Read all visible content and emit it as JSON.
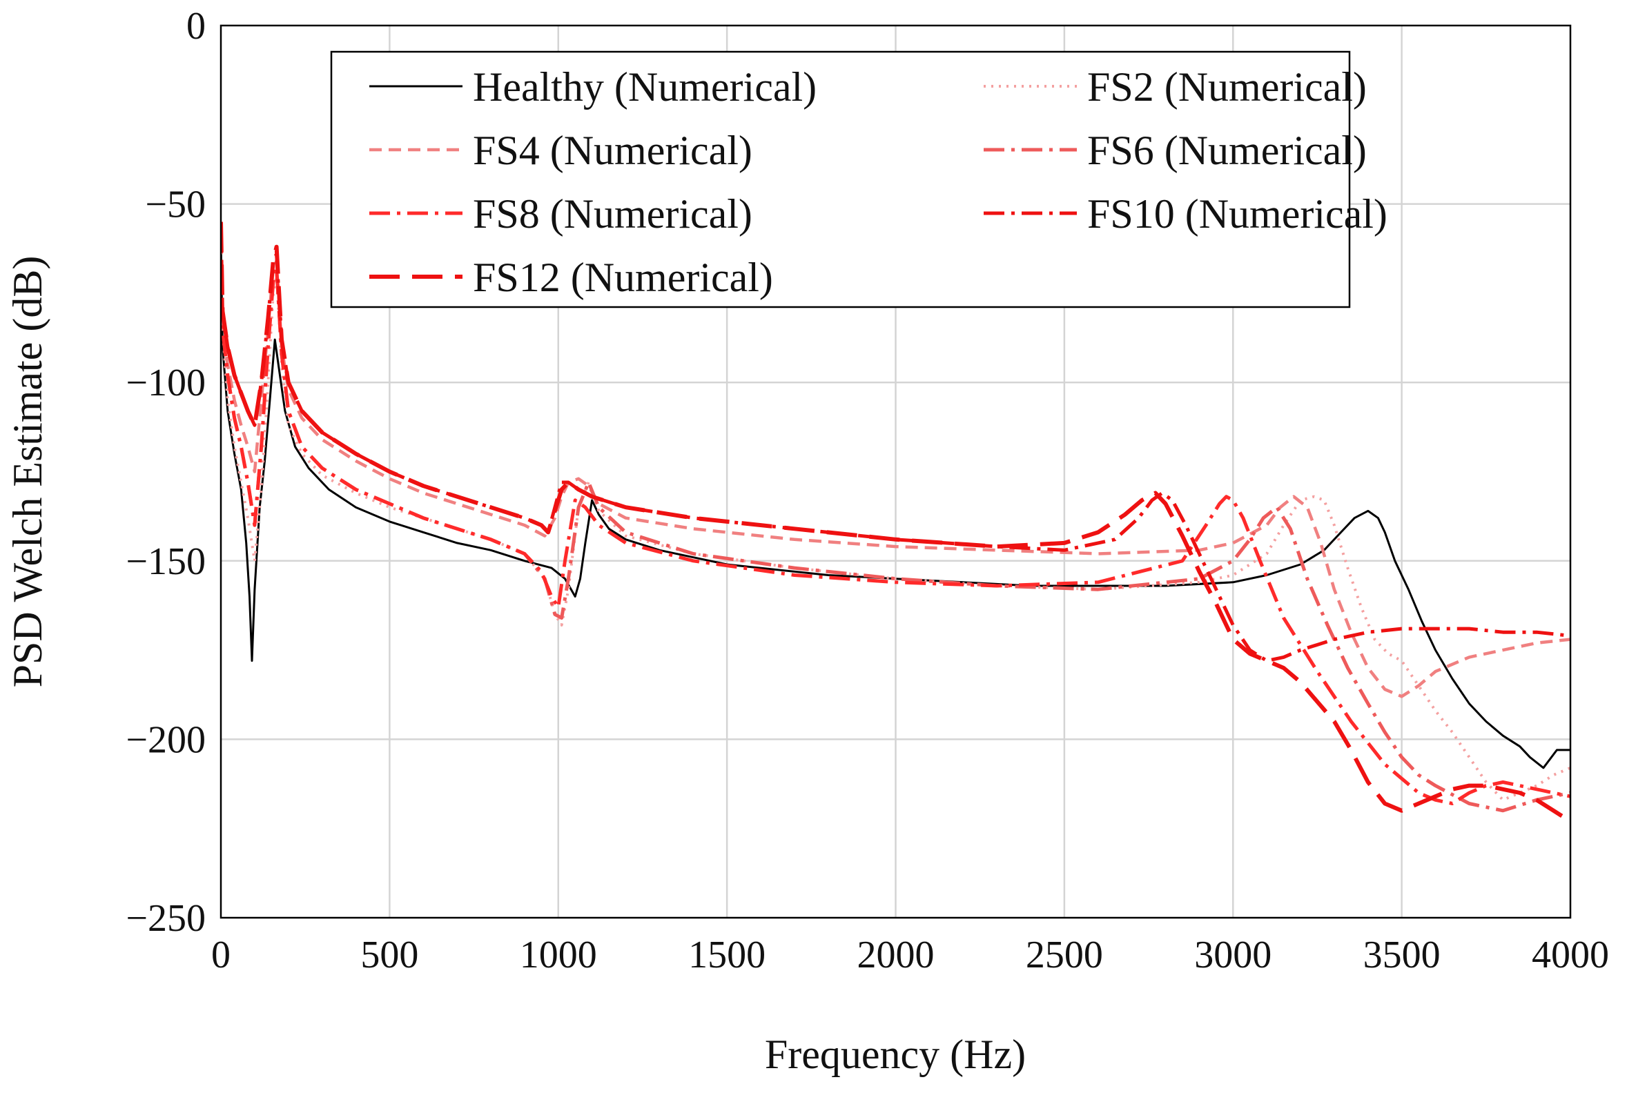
{
  "chart_data": {
    "type": "line",
    "title": "",
    "xlabel": "Frequency  (Hz)",
    "ylabel": "PSD Welch Estimate (dB)",
    "xlim": [
      0,
      4000
    ],
    "ylim": [
      -250,
      0
    ],
    "xticks": [
      0,
      500,
      1000,
      1500,
      2000,
      2500,
      3000,
      3500,
      4000
    ],
    "yticks": [
      0,
      -50,
      -100,
      -150,
      -200,
      -250
    ],
    "xtick_labels": [
      "0",
      "500",
      "1000",
      "1500",
      "2000",
      "2500",
      "3000",
      "3500",
      "4000"
    ],
    "ytick_labels": [
      "0",
      "−50",
      "−100",
      "−150",
      "−200",
      "−250"
    ],
    "grid": true,
    "legend_position": "top-right",
    "series": [
      {
        "name": "Healthy (Numerical)",
        "color": "#000000",
        "dash": "solid",
        "x": [
          0,
          5,
          20,
          40,
          60,
          75,
          85,
          92,
          100,
          115,
          130,
          145,
          160,
          175,
          190,
          220,
          260,
          320,
          400,
          500,
          600,
          700,
          800,
          900,
          980,
          1020,
          1050,
          1065,
          1080,
          1100,
          1120,
          1150,
          1200,
          1300,
          1500,
          1800,
          2000,
          2200,
          2400,
          2600,
          2800,
          3000,
          3100,
          3200,
          3270,
          3320,
          3360,
          3400,
          3430,
          3450,
          3480,
          3520,
          3560,
          3600,
          3650,
          3700,
          3750,
          3800,
          3850,
          3880,
          3920,
          3960,
          4000
        ],
        "y": [
          -60,
          -90,
          -108,
          -120,
          -130,
          -145,
          -160,
          -178,
          -158,
          -135,
          -122,
          -105,
          -88,
          -98,
          -108,
          -118,
          -124,
          -130,
          -135,
          -139,
          -142,
          -145,
          -147,
          -150,
          -152,
          -155,
          -160,
          -155,
          -145,
          -133,
          -137,
          -141,
          -144,
          -147,
          -151,
          -154,
          -155,
          -156,
          -157,
          -157,
          -157,
          -156,
          -154,
          -151,
          -147,
          -142,
          -138,
          -136,
          -138,
          -142,
          -150,
          -158,
          -167,
          -175,
          -183,
          -190,
          -195,
          -199,
          -202,
          -205,
          -208,
          -203,
          -203
        ]
      },
      {
        "name": "FS2 (Numerical)",
        "color": "#f4a0a0",
        "dash": "dot",
        "x": [
          0,
          5,
          20,
          40,
          60,
          80,
          100,
          120,
          140,
          155,
          165,
          180,
          200,
          240,
          300,
          400,
          500,
          600,
          700,
          800,
          900,
          960,
          990,
          1010,
          1030,
          1060,
          1090,
          1120,
          1200,
          1400,
          1700,
          2000,
          2300,
          2600,
          2900,
          3000,
          3100,
          3150,
          3200,
          3240,
          3270,
          3300,
          3340,
          3380,
          3420,
          3460,
          3500,
          3550,
          3600,
          3650,
          3700,
          3750,
          3800,
          3850,
          3900,
          3950,
          4000
        ],
        "y": [
          -55,
          -85,
          -105,
          -118,
          -128,
          -138,
          -150,
          -130,
          -100,
          -75,
          -70,
          -95,
          -112,
          -120,
          -126,
          -131,
          -135,
          -138,
          -141,
          -144,
          -148,
          -155,
          -165,
          -168,
          -158,
          -135,
          -128,
          -136,
          -143,
          -148,
          -152,
          -155,
          -157,
          -158,
          -156,
          -154,
          -148,
          -140,
          -133,
          -132,
          -133,
          -140,
          -152,
          -163,
          -172,
          -176,
          -178,
          -185,
          -192,
          -198,
          -205,
          -212,
          -217,
          -215,
          -213,
          -210,
          -208
        ]
      },
      {
        "name": "FS4 (Numerical)",
        "color": "#f08080",
        "dash": "dash",
        "x": [
          0,
          5,
          20,
          40,
          60,
          80,
          100,
          120,
          140,
          155,
          165,
          180,
          200,
          240,
          300,
          400,
          500,
          600,
          700,
          800,
          900,
          960,
          990,
          1010,
          1030,
          1060,
          1090,
          1120,
          1200,
          1400,
          1700,
          2000,
          2300,
          2600,
          2900,
          3000,
          3100,
          3140,
          3180,
          3220,
          3260,
          3300,
          3350,
          3400,
          3450,
          3500,
          3550,
          3600,
          3700,
          3800,
          3900,
          4000
        ],
        "y": [
          -55,
          -85,
          -95,
          -105,
          -112,
          -118,
          -125,
          -105,
          -85,
          -68,
          -66,
          -90,
          -102,
          -110,
          -116,
          -122,
          -127,
          -131,
          -134,
          -137,
          -140,
          -143,
          -138,
          -132,
          -128,
          -127,
          -129,
          -134,
          -138,
          -141,
          -144,
          -146,
          -147,
          -148,
          -147,
          -145,
          -140,
          -135,
          -132,
          -135,
          -145,
          -158,
          -170,
          -180,
          -186,
          -188,
          -185,
          -181,
          -177,
          -175,
          -173,
          -172
        ]
      },
      {
        "name": "FS6 (Numerical)",
        "color": "#ee5a5a",
        "dash": "dashdot",
        "x": [
          0,
          5,
          20,
          40,
          60,
          80,
          100,
          120,
          140,
          155,
          165,
          180,
          200,
          240,
          300,
          400,
          500,
          600,
          700,
          800,
          900,
          960,
          990,
          1010,
          1030,
          1060,
          1090,
          1120,
          1200,
          1400,
          1700,
          2000,
          2300,
          2600,
          2900,
          3000,
          3050,
          3090,
          3130,
          3170,
          3220,
          3280,
          3340,
          3400,
          3450,
          3500,
          3550,
          3600,
          3700,
          3800,
          3900,
          4000
        ],
        "y": [
          -55,
          -85,
          -98,
          -110,
          -118,
          -128,
          -140,
          -118,
          -90,
          -70,
          -68,
          -92,
          -108,
          -118,
          -124,
          -130,
          -134,
          -138,
          -141,
          -144,
          -148,
          -155,
          -165,
          -166,
          -155,
          -135,
          -128,
          -135,
          -142,
          -148,
          -152,
          -155,
          -157,
          -158,
          -155,
          -150,
          -144,
          -138,
          -135,
          -141,
          -155,
          -168,
          -180,
          -190,
          -198,
          -205,
          -210,
          -213,
          -218,
          -220,
          -217,
          -215
        ]
      },
      {
        "name": "FS8 (Numerical)",
        "color": "#ff2a2a",
        "dash": "dashdot",
        "x": [
          0,
          5,
          20,
          40,
          60,
          80,
          100,
          120,
          140,
          155,
          165,
          180,
          200,
          240,
          300,
          400,
          500,
          600,
          700,
          800,
          900,
          950,
          980,
          1000,
          1020,
          1050,
          1080,
          1120,
          1200,
          1400,
          1700,
          2000,
          2300,
          2600,
          2850,
          2920,
          2960,
          2980,
          3000,
          3030,
          3080,
          3150,
          3250,
          3350,
          3450,
          3550,
          3600,
          3650,
          3700,
          3750,
          3800,
          3850,
          3900,
          3950,
          4000
        ],
        "y": [
          -55,
          -85,
          -98,
          -110,
          -118,
          -128,
          -140,
          -118,
          -90,
          -72,
          -68,
          -92,
          -108,
          -118,
          -124,
          -130,
          -134,
          -138,
          -141,
          -144,
          -148,
          -153,
          -160,
          -163,
          -150,
          -133,
          -135,
          -140,
          -145,
          -150,
          -154,
          -156,
          -157,
          -156,
          -150,
          -140,
          -134,
          -132,
          -133,
          -138,
          -150,
          -166,
          -181,
          -195,
          -207,
          -215,
          -217,
          -218,
          -215,
          -213,
          -212,
          -213,
          -214,
          -215,
          -216
        ]
      },
      {
        "name": "FS10 (Numerical)",
        "color": "#ee1111",
        "dash": "dashdot",
        "x": [
          0,
          5,
          20,
          40,
          60,
          80,
          100,
          120,
          140,
          155,
          165,
          180,
          200,
          240,
          300,
          400,
          500,
          600,
          700,
          800,
          900,
          950,
          970,
          990,
          1010,
          1030,
          1060,
          1100,
          1200,
          1400,
          1700,
          2000,
          2300,
          2500,
          2650,
          2720,
          2760,
          2790,
          2820,
          2860,
          2920,
          3000,
          3050,
          3100,
          3150,
          3200,
          3300,
          3400,
          3500,
          3600,
          3700,
          3800,
          3900,
          4000
        ],
        "y": [
          -55,
          -80,
          -90,
          -98,
          -103,
          -108,
          -112,
          -100,
          -82,
          -66,
          -64,
          -88,
          -100,
          -108,
          -114,
          -120,
          -125,
          -129,
          -132,
          -135,
          -138,
          -140,
          -142,
          -135,
          -128,
          -128,
          -130,
          -132,
          -135,
          -138,
          -141,
          -144,
          -146,
          -147,
          -144,
          -138,
          -133,
          -131,
          -133,
          -140,
          -152,
          -168,
          -175,
          -178,
          -177,
          -175,
          -172,
          -170,
          -169,
          -169,
          -169,
          -170,
          -170,
          -171
        ]
      },
      {
        "name": "FS12 (Numerical)",
        "color": "#ee1111",
        "dash": "longdash",
        "x": [
          0,
          5,
          20,
          40,
          60,
          80,
          100,
          120,
          140,
          155,
          165,
          180,
          200,
          240,
          300,
          400,
          500,
          600,
          700,
          800,
          900,
          950,
          970,
          990,
          1010,
          1030,
          1060,
          1100,
          1200,
          1400,
          1700,
          2000,
          2300,
          2500,
          2600,
          2680,
          2730,
          2770,
          2800,
          2850,
          2900,
          2950,
          3000,
          3050,
          3100,
          3150,
          3200,
          3300,
          3350,
          3400,
          3450,
          3500,
          3550,
          3600,
          3650,
          3700,
          3750,
          3800,
          3850,
          3900,
          3950,
          4000
        ],
        "y": [
          -55,
          -80,
          -90,
          -98,
          -103,
          -108,
          -112,
          -100,
          -82,
          -66,
          -62,
          -88,
          -100,
          -108,
          -114,
          -120,
          -125,
          -129,
          -132,
          -135,
          -138,
          -140,
          -142,
          -136,
          -130,
          -128,
          -130,
          -132,
          -135,
          -138,
          -141,
          -144,
          -146,
          -145,
          -142,
          -137,
          -133,
          -131,
          -134,
          -143,
          -153,
          -162,
          -172,
          -176,
          -178,
          -180,
          -184,
          -195,
          -203,
          -212,
          -218,
          -220,
          -218,
          -216,
          -214,
          -213,
          -213,
          -214,
          -215,
          -217,
          -220,
          -223
        ]
      }
    ]
  }
}
